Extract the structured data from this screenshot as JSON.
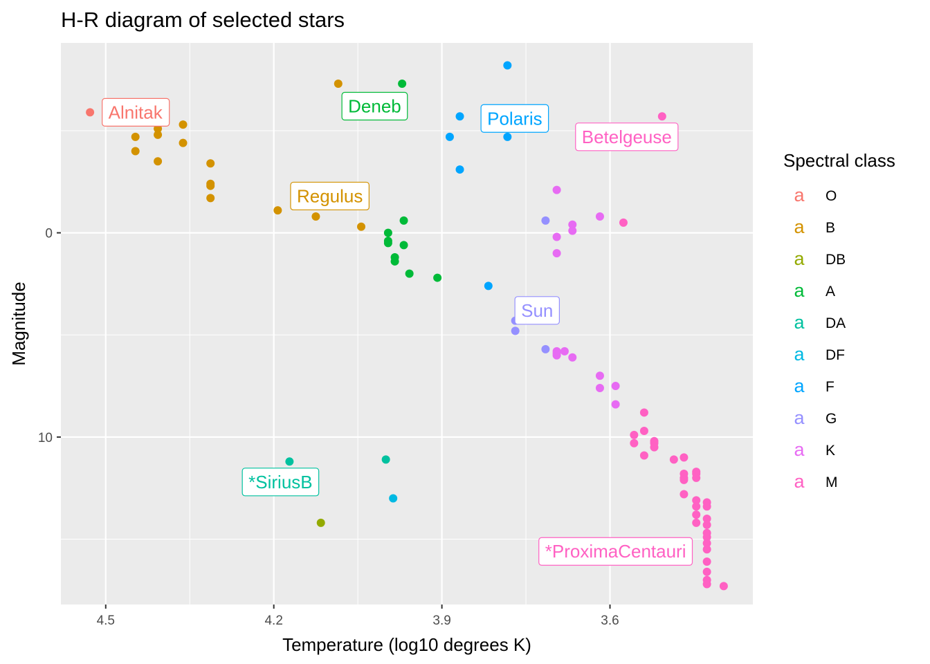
{
  "chart_data": {
    "type": "scatter",
    "title": "H-R diagram of selected stars",
    "xlabel": "Temperature (log10 degrees K)",
    "ylabel": "Magnitude",
    "xlim": [
      4.58,
      3.345
    ],
    "ylim": [
      18.2,
      -9.3
    ],
    "x_reversed": true,
    "y_reversed": true,
    "x_ticks": [
      4.5,
      4.2,
      3.9,
      3.6
    ],
    "x_tick_labels": [
      "4.5",
      "4.2",
      "3.9",
      "3.6"
    ],
    "y_ticks": [
      0,
      10
    ],
    "y_tick_labels": [
      "0",
      "10"
    ],
    "grid": true,
    "legend": {
      "title": "Spectral class",
      "position": "right",
      "key_glyph": "a"
    },
    "classes": [
      {
        "name": "O",
        "color": "#F8766D"
      },
      {
        "name": "B",
        "color": "#D39200"
      },
      {
        "name": "DB",
        "color": "#93AA00"
      },
      {
        "name": "A",
        "color": "#00BA38"
      },
      {
        "name": "DA",
        "color": "#00C19F"
      },
      {
        "name": "DF",
        "color": "#00B9E3"
      },
      {
        "name": "F",
        "color": "#00A5FF"
      },
      {
        "name": "G",
        "color": "#9590FF"
      },
      {
        "name": "K",
        "color": "#E76BF3"
      },
      {
        "name": "M",
        "color": "#FF61C3"
      }
    ],
    "series": [
      {
        "name": "O",
        "points": [
          [
            4.528,
            -5.9
          ]
        ]
      },
      {
        "name": "B",
        "points": [
          [
            4.447,
            -4.7
          ],
          [
            4.447,
            -4.0
          ],
          [
            4.407,
            -5.1
          ],
          [
            4.407,
            -4.8
          ],
          [
            4.407,
            -3.5
          ],
          [
            4.362,
            -5.3
          ],
          [
            4.362,
            -4.4
          ],
          [
            4.313,
            -3.4
          ],
          [
            4.313,
            -2.4
          ],
          [
            4.313,
            -2.3
          ],
          [
            4.313,
            -1.7
          ],
          [
            4.193,
            -1.1
          ],
          [
            4.125,
            -0.8
          ],
          [
            4.085,
            -7.3
          ],
          [
            4.044,
            -0.3
          ]
        ]
      },
      {
        "name": "DB",
        "points": [
          [
            4.116,
            14.2
          ]
        ]
      },
      {
        "name": "A",
        "points": [
          [
            3.971,
            -7.3
          ],
          [
            3.968,
            -0.6
          ],
          [
            3.996,
            0.0
          ],
          [
            3.996,
            0.4
          ],
          [
            3.996,
            0.5
          ],
          [
            3.984,
            1.2
          ],
          [
            3.984,
            1.4
          ],
          [
            3.968,
            0.6
          ],
          [
            3.958,
            2.0
          ],
          [
            3.908,
            2.2
          ]
        ]
      },
      {
        "name": "DA",
        "points": [
          [
            4.172,
            11.2
          ],
          [
            4.0,
            11.1
          ]
        ]
      },
      {
        "name": "DF",
        "points": [
          [
            3.987,
            13.0
          ]
        ]
      },
      {
        "name": "F",
        "points": [
          [
            3.868,
            -5.7
          ],
          [
            3.886,
            -4.7
          ],
          [
            3.783,
            -4.7
          ],
          [
            3.868,
            -3.1
          ],
          [
            3.783,
            -8.2
          ],
          [
            3.817,
            2.6
          ]
        ]
      },
      {
        "name": "G",
        "points": [
          [
            3.769,
            4.3
          ],
          [
            3.769,
            4.8
          ],
          [
            3.715,
            5.7
          ],
          [
            3.715,
            -0.6
          ]
        ]
      },
      {
        "name": "K",
        "points": [
          [
            3.695,
            -2.1
          ],
          [
            3.695,
            0.2
          ],
          [
            3.695,
            1.0
          ],
          [
            3.667,
            -0.4
          ],
          [
            3.667,
            -0.1
          ],
          [
            3.618,
            -0.8
          ],
          [
            3.695,
            5.8
          ],
          [
            3.695,
            5.9
          ],
          [
            3.695,
            6.0
          ],
          [
            3.681,
            5.8
          ],
          [
            3.667,
            6.1
          ],
          [
            3.618,
            7.0
          ],
          [
            3.618,
            7.6
          ],
          [
            3.59,
            7.5
          ],
          [
            3.59,
            8.4
          ]
        ]
      },
      {
        "name": "M",
        "points": [
          [
            3.576,
            -0.5
          ],
          [
            3.507,
            -5.7
          ],
          [
            3.539,
            10.9
          ],
          [
            3.557,
            9.9
          ],
          [
            3.557,
            10.3
          ],
          [
            3.539,
            8.8
          ],
          [
            3.539,
            9.7
          ],
          [
            3.521,
            10.2
          ],
          [
            3.521,
            10.3
          ],
          [
            3.521,
            10.5
          ],
          [
            3.486,
            11.1
          ],
          [
            3.468,
            11.0
          ],
          [
            3.468,
            11.8
          ],
          [
            3.468,
            12.0
          ],
          [
            3.468,
            12.1
          ],
          [
            3.468,
            12.8
          ],
          [
            3.446,
            11.7
          ],
          [
            3.446,
            11.8
          ],
          [
            3.446,
            12.0
          ],
          [
            3.446,
            13.1
          ],
          [
            3.446,
            13.4
          ],
          [
            3.446,
            13.8
          ],
          [
            3.446,
            14.2
          ],
          [
            3.427,
            13.2
          ],
          [
            3.427,
            13.4
          ],
          [
            3.427,
            14.0
          ],
          [
            3.427,
            14.3
          ],
          [
            3.427,
            14.7
          ],
          [
            3.427,
            14.9
          ],
          [
            3.427,
            15.2
          ],
          [
            3.427,
            15.5
          ],
          [
            3.427,
            16.1
          ],
          [
            3.427,
            16.6
          ],
          [
            3.427,
            17.0
          ],
          [
            3.427,
            17.2
          ],
          [
            3.397,
            17.3
          ]
        ]
      }
    ],
    "annotations": [
      {
        "label": "Alnitak",
        "class": "O",
        "x": 4.447,
        "y": -5.9
      },
      {
        "label": "Deneb",
        "class": "A",
        "x": 4.02,
        "y": -6.2
      },
      {
        "label": "Polaris",
        "class": "F",
        "x": 3.77,
        "y": -5.6
      },
      {
        "label": "Betelgeuse",
        "class": "M",
        "x": 3.57,
        "y": -4.7
      },
      {
        "label": "Regulus",
        "class": "B",
        "x": 4.1,
        "y": -1.8
      },
      {
        "label": "Sun",
        "class": "G",
        "x": 3.73,
        "y": 3.8
      },
      {
        "label": "*SiriusB",
        "class": "DA",
        "x": 4.188,
        "y": 12.2
      },
      {
        "label": "*ProximaCentauri",
        "class": "M",
        "x": 3.59,
        "y": 15.6
      }
    ]
  }
}
